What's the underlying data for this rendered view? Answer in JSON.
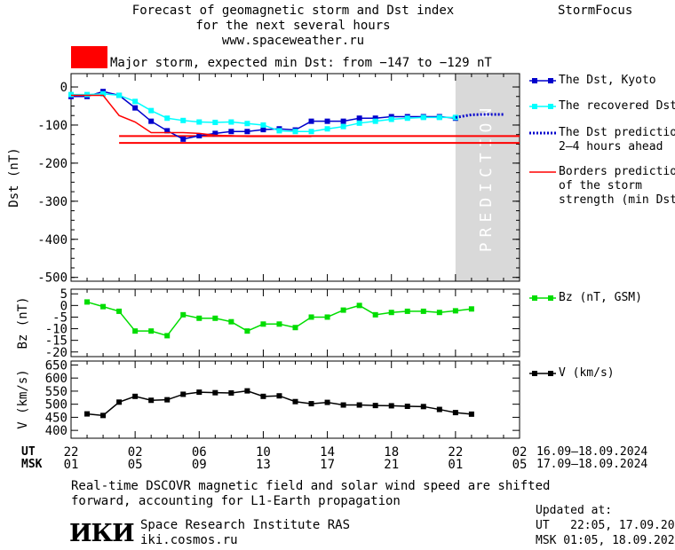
{
  "header": {
    "title_line1": "Forecast of geomagnetic storm and Dst index",
    "title_line2": "for the next several hours",
    "url": "www.spaceweather.ru",
    "brand": "StormFocus"
  },
  "storm_banner": {
    "label": "Major storm, expected min Dst: from −147 to −129 nT",
    "color": "#ff0000"
  },
  "prediction_label": "PREDICTION",
  "legend": {
    "dst_kyoto": "The Dst, Kyoto",
    "recovered": "The recovered Dst",
    "prediction": "The Dst prediction\n2–4 hours ahead",
    "borders": "Borders prediction\nof the storm\nstrength (min Dst)",
    "bz": "Bz (nT, GSM)",
    "v": "V (km/s)"
  },
  "time_axis": {
    "ut_label": "UT",
    "msk_label": "MSK",
    "ut_ticks": [
      "22",
      "02",
      "06",
      "10",
      "14",
      "18",
      "22",
      "02"
    ],
    "msk_ticks": [
      "01",
      "05",
      "09",
      "13",
      "17",
      "21",
      "01",
      "05"
    ],
    "ut_range": "16.09–18.09.2024",
    "msk_range": "17.09–18.09.2024"
  },
  "footer": {
    "note_line1": "Real-time DSCOVR magnetic field and solar wind speed are shifted",
    "note_line2": "forward, accounting for L1-Earth propagation",
    "logo_text": "ИКИ",
    "institute": "Space Research Institute RAS",
    "site": "iki.cosmos.ru",
    "updated_label": "Updated at:",
    "updated_ut": "UT   22:05, 17.09.2024",
    "updated_msk": "MSK 01:05, 18.09.2024"
  },
  "chart_data": [
    {
      "type": "line",
      "ylabel": "Dst (nT)",
      "ylim": [
        -510,
        35
      ],
      "yticks": [
        0,
        -100,
        -200,
        -300,
        -400,
        -500
      ],
      "xlim": [
        22,
        50
      ],
      "prediction_start": 46,
      "series": [
        {
          "name": "The Dst, Kyoto",
          "color": "#0000cc",
          "x": [
            22,
            23,
            24,
            25,
            26,
            27,
            28,
            29,
            30,
            31,
            32,
            33,
            34,
            35,
            36,
            37,
            38,
            39,
            40,
            41,
            42,
            43,
            44,
            45,
            46
          ],
          "values": [
            -25,
            -25,
            -12,
            -22,
            -55,
            -90,
            -115,
            -137,
            -128,
            -122,
            -117,
            -117,
            -112,
            -110,
            -113,
            -90,
            -90,
            -90,
            -82,
            -82,
            -78,
            -78,
            -78,
            -78,
            -82
          ]
        },
        {
          "name": "The recovered Dst",
          "color": "#00ffff",
          "x": [
            22,
            23,
            24,
            25,
            26,
            27,
            28,
            29,
            30,
            31,
            32,
            33,
            34,
            35,
            36,
            37,
            38,
            39,
            40,
            41,
            42,
            43,
            44,
            45,
            46
          ],
          "values": [
            -20,
            -20,
            -18,
            -22,
            -38,
            -62,
            -82,
            -88,
            -92,
            -93,
            -92,
            -96,
            -100,
            -115,
            -117,
            -117,
            -110,
            -104,
            -95,
            -90,
            -85,
            -82,
            -80,
            -80,
            -80
          ]
        },
        {
          "name": "The Dst prediction 2–4 hours ahead",
          "color": "#0000cc",
          "x": [
            46,
            47,
            48,
            49
          ],
          "values": [
            -80,
            -73,
            -72,
            -72
          ]
        },
        {
          "name": "Borders prediction of the storm strength (min Dst)",
          "color": "#ff0000",
          "x": [
            22,
            24,
            25,
            26,
            27,
            28,
            29,
            30,
            31,
            32,
            33,
            34,
            35,
            36,
            37
          ],
          "values": [
            -22,
            -22,
            -75,
            -92,
            -120,
            -120,
            -120,
            -122,
            -127,
            -128,
            -130,
            -130,
            -130,
            -130,
            -130
          ]
        }
      ],
      "hlines": [
        -129,
        -147
      ],
      "hline_from_x": 25
    },
    {
      "type": "line",
      "ylabel": "Bz (nT)",
      "ylim": [
        -22,
        7
      ],
      "yticks": [
        5,
        0,
        -5,
        -10,
        -15,
        -20
      ],
      "xlim": [
        22,
        50
      ],
      "series": [
        {
          "name": "Bz (nT, GSM)",
          "color": "#00dd00",
          "x": [
            23,
            24,
            25,
            26,
            27,
            28,
            29,
            30,
            31,
            32,
            33,
            34,
            35,
            36,
            37,
            38,
            39,
            40,
            41,
            42,
            43,
            44,
            45,
            46,
            47
          ],
          "values": [
            1.5,
            -0.5,
            -2.5,
            -11,
            -11,
            -13,
            -4,
            -5.5,
            -5.5,
            -7,
            -11,
            -8,
            -8,
            -9.5,
            -5,
            -5,
            -2,
            0,
            -4,
            -3,
            -2.5,
            -2.5,
            -3,
            -2.3,
            -1.5
          ]
        }
      ]
    },
    {
      "type": "line",
      "ylabel": "V (km/s)",
      "ylim": [
        370,
        665
      ],
      "yticks": [
        650,
        600,
        550,
        500,
        450,
        400
      ],
      "xlim": [
        22,
        50
      ],
      "series": [
        {
          "name": "V (km/s)",
          "color": "#000000",
          "x": [
            23,
            24,
            25,
            26,
            27,
            28,
            29,
            30,
            31,
            32,
            33,
            34,
            35,
            36,
            37,
            38,
            39,
            40,
            41,
            42,
            43,
            44,
            45,
            46,
            47
          ],
          "values": [
            463,
            457,
            508,
            530,
            515,
            517,
            538,
            546,
            544,
            543,
            551,
            530,
            532,
            510,
            502,
            507,
            497,
            497,
            495,
            494,
            492,
            491,
            480,
            468,
            462
          ]
        }
      ]
    }
  ]
}
